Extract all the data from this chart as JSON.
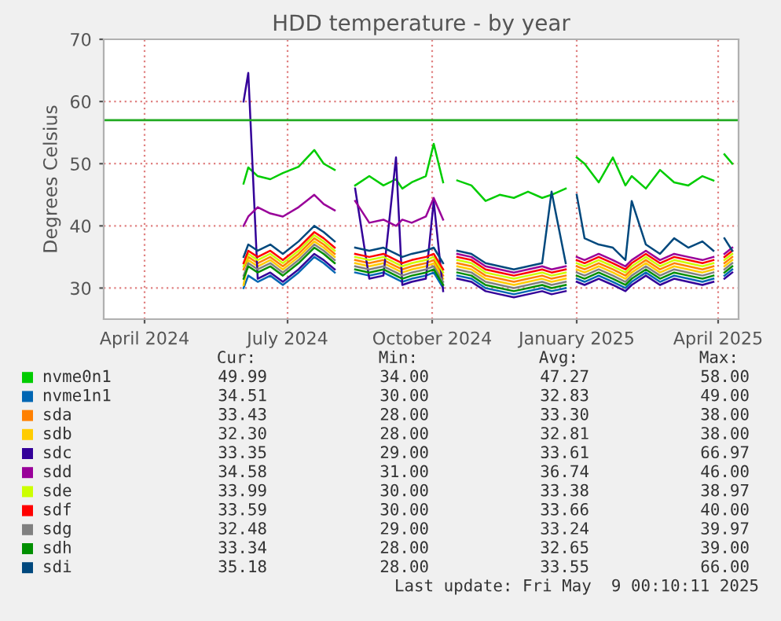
{
  "chart_data": {
    "type": "line",
    "title": "HDD temperature - by year",
    "ylabel": "Degrees Celsius",
    "x": [
      "2024-06-03",
      "2024-06-06",
      "2024-06-12",
      "2024-06-20",
      "2024-06-28",
      "2024-07-08",
      "2024-07-18",
      "2024-07-24",
      "2024-07-31",
      "2024-08-06",
      "2024-08-13",
      "2024-08-22",
      "2024-08-31",
      "2024-09-08",
      "2024-09-12",
      "2024-09-18",
      "2024-09-27",
      "2024-10-02",
      "2024-10-08",
      "2024-10-12",
      "2024-10-17",
      "2024-10-26",
      "2024-11-04",
      "2024-11-13",
      "2024-11-22",
      "2024-12-01",
      "2024-12-10",
      "2024-12-16",
      "2024-12-25",
      "2024-12-29",
      "2025-01-01",
      "2025-01-06",
      "2025-01-15",
      "2025-01-24",
      "2025-02-01",
      "2025-02-05",
      "2025-02-14",
      "2025-02-23",
      "2025-03-04",
      "2025-03-13",
      "2025-03-22",
      "2025-03-29",
      "2025-04-02",
      "2025-04-05",
      "2025-04-10"
    ],
    "series": [
      {
        "name": "nvme0n1",
        "color": "#00cc00",
        "values": [
          46.8,
          49.4,
          48,
          47.5,
          48.5,
          49.5,
          52.2,
          50,
          49,
          null,
          46.5,
          48,
          46.5,
          47.5,
          46,
          47,
          48,
          53.2,
          47,
          null,
          47.3,
          46.5,
          44,
          45,
          44.5,
          45.5,
          44.5,
          45,
          46,
          null,
          51,
          50,
          47,
          51,
          46.5,
          48,
          46,
          49,
          47,
          46.5,
          48,
          47.3,
          null,
          51.5,
          50
        ]
      },
      {
        "name": "nvme1n1",
        "color": "#0066b3",
        "values": [
          30,
          32,
          31,
          32,
          30.5,
          32.5,
          35,
          34,
          32.5,
          null,
          32.5,
          32,
          32.5,
          31.5,
          31,
          31.5,
          32,
          32.5,
          30,
          null,
          32,
          31.5,
          30,
          29.5,
          29,
          29.5,
          30,
          29.5,
          30,
          null,
          31.5,
          31,
          32,
          31,
          30,
          31,
          32.5,
          31,
          32,
          31.5,
          31,
          31.5,
          null,
          32,
          33
        ]
      },
      {
        "name": "sda",
        "color": "#ff8000",
        "values": [
          33,
          35,
          34,
          35,
          33.5,
          35.5,
          38,
          37,
          35.5,
          null,
          34.5,
          34,
          34.5,
          33.5,
          33,
          33.5,
          34,
          34.5,
          32,
          null,
          34,
          33.5,
          32,
          31.5,
          31,
          31.5,
          32,
          31.5,
          32,
          null,
          33.5,
          33,
          34,
          33,
          32,
          33,
          34.5,
          33,
          34,
          33.5,
          33,
          33.5,
          null,
          34,
          35
        ]
      },
      {
        "name": "sdb",
        "color": "#ffcc00",
        "values": [
          30.5,
          34.5,
          33.5,
          34.5,
          33,
          35,
          37.5,
          36.5,
          35,
          null,
          34,
          33.5,
          34,
          33,
          32.5,
          33,
          33.5,
          34,
          31.5,
          null,
          33.5,
          33,
          31.5,
          31,
          30.5,
          31,
          31.5,
          31,
          31.5,
          null,
          33,
          32.5,
          33.5,
          32.5,
          31.5,
          32.5,
          34,
          32.5,
          33.5,
          33,
          32.5,
          33,
          null,
          33.5,
          34.5
        ]
      },
      {
        "name": "sdc",
        "color": "#330099",
        "values": [
          60,
          64.6,
          31.5,
          32.5,
          31,
          33,
          35.5,
          34.5,
          33,
          null,
          46,
          31.5,
          32,
          51,
          30.5,
          31,
          31.5,
          44,
          29.5,
          null,
          31.5,
          31,
          29.5,
          29,
          28.5,
          29,
          29.5,
          29,
          29.5,
          null,
          31,
          30.5,
          31.5,
          30.5,
          29.5,
          30.5,
          32,
          30.5,
          31.5,
          31,
          30.5,
          31,
          null,
          31.5,
          32.5
        ]
      },
      {
        "name": "sdd",
        "color": "#990099",
        "values": [
          40,
          41.5,
          43,
          42,
          41.5,
          43,
          45,
          43.5,
          42.5,
          null,
          44,
          40.5,
          41,
          40,
          41,
          40.5,
          41.5,
          44.5,
          41,
          null,
          35.5,
          35,
          33.5,
          33,
          32.5,
          33,
          33.5,
          33,
          33.5,
          null,
          35,
          34.5,
          35.5,
          34.5,
          33.5,
          34.5,
          36,
          34.5,
          35.5,
          35,
          34.5,
          35,
          null,
          35.5,
          36.5
        ]
      },
      {
        "name": "sde",
        "color": "#ccff00",
        "values": [
          33.5,
          35.5,
          34.5,
          35.5,
          34,
          36,
          38.5,
          37.5,
          36,
          null,
          35,
          34.5,
          35,
          34,
          33.5,
          34,
          34.5,
          35,
          32.5,
          null,
          34.5,
          34,
          32.5,
          32,
          31.5,
          32,
          32.5,
          32,
          32.5,
          null,
          34,
          33.5,
          34.5,
          33.5,
          32.5,
          33.5,
          35,
          33.5,
          34.5,
          34,
          33.5,
          34,
          null,
          34.5,
          35.5
        ]
      },
      {
        "name": "sdf",
        "color": "#ff0000",
        "values": [
          34,
          36,
          35,
          36,
          34.5,
          36.5,
          39,
          38,
          36.5,
          null,
          35.5,
          35,
          35.5,
          34.5,
          34,
          34.5,
          35,
          35.5,
          33,
          null,
          35,
          34.5,
          33,
          32.5,
          32,
          32.5,
          33,
          32.5,
          33,
          null,
          34.5,
          34,
          35,
          34,
          33,
          34,
          35.5,
          34,
          35,
          34.5,
          34,
          34.5,
          null,
          35,
          36
        ]
      },
      {
        "name": "sdg",
        "color": "#808080",
        "values": [
          32,
          34,
          33,
          34,
          32.5,
          34.5,
          37,
          36,
          34.5,
          null,
          33.5,
          33,
          33.5,
          32.5,
          32,
          32.5,
          33,
          33.5,
          31,
          null,
          33,
          32.5,
          31,
          30.5,
          30,
          30.5,
          31,
          30.5,
          31,
          null,
          32.5,
          32,
          33,
          32,
          31,
          32,
          33.5,
          32,
          33,
          32.5,
          32,
          32.5,
          null,
          33,
          34
        ]
      },
      {
        "name": "sdh",
        "color": "#008f00",
        "values": [
          31.5,
          33.5,
          32.5,
          33.5,
          32,
          34,
          36.5,
          35.5,
          34,
          null,
          33,
          32.5,
          33,
          32,
          31.5,
          32,
          32.5,
          33,
          30.5,
          null,
          32.5,
          32,
          30.5,
          30,
          29.5,
          30,
          30.5,
          30,
          30.5,
          null,
          32,
          31.5,
          32.5,
          31.5,
          30.5,
          31.5,
          33,
          31.5,
          32.5,
          32,
          31.5,
          32,
          null,
          32.5,
          33.5
        ]
      },
      {
        "name": "sdi",
        "color": "#00487d",
        "values": [
          35,
          37,
          36,
          37,
          35.5,
          37.5,
          40,
          39,
          37.5,
          null,
          36.5,
          36,
          36.5,
          35.5,
          35,
          35.5,
          36,
          36.5,
          34,
          null,
          36,
          35.5,
          34,
          33.5,
          33,
          33.5,
          34,
          45.5,
          34,
          null,
          45,
          38,
          37,
          36.5,
          34.5,
          44,
          37,
          35.5,
          38,
          36.5,
          37.5,
          36,
          null,
          38,
          36
        ]
      }
    ],
    "xlim": [
      "2024-03-06",
      "2025-04-14"
    ],
    "xticks": [
      {
        "value": "2024-04-01",
        "label": "April 2024"
      },
      {
        "value": "2024-07-01",
        "label": "July 2024"
      },
      {
        "value": "2024-10-01",
        "label": "October 2024"
      },
      {
        "value": "2025-01-01",
        "label": "January 2025"
      },
      {
        "value": "2025-04-01",
        "label": "April 2025"
      }
    ],
    "ylim": [
      25,
      70
    ],
    "yticks": [
      30,
      40,
      50,
      60,
      70
    ],
    "ref_lines": [
      {
        "axis": "y",
        "value": 57,
        "color": "#22aa22"
      }
    ],
    "grid": true,
    "legend": "bottom",
    "marker": "none",
    "line_style": "solid",
    "annotations": [
      "Cur:",
      "Min:",
      "Avg:",
      "Max:",
      "49.99",
      "34.00",
      "47.27",
      "58.00",
      "34.51",
      "30.00",
      "32.83",
      "49.00",
      "33.43",
      "28.00",
      "33.30",
      "38.00",
      "32.30",
      "28.00",
      "32.81",
      "38.00",
      "33.35",
      "29.00",
      "33.61",
      "66.97",
      "34.58",
      "31.00",
      "36.74",
      "46.00",
      "33.99",
      "30.00",
      "33.38",
      "38.97",
      "33.59",
      "30.00",
      "33.66",
      "40.00",
      "32.48",
      "29.00",
      "33.24",
      "39.97",
      "33.34",
      "28.00",
      "32.65",
      "39.00",
      "35.18",
      "28.00",
      "33.55",
      "66.00",
      "Last update: Fri May  9 00:10:11 2025"
    ]
  }
}
